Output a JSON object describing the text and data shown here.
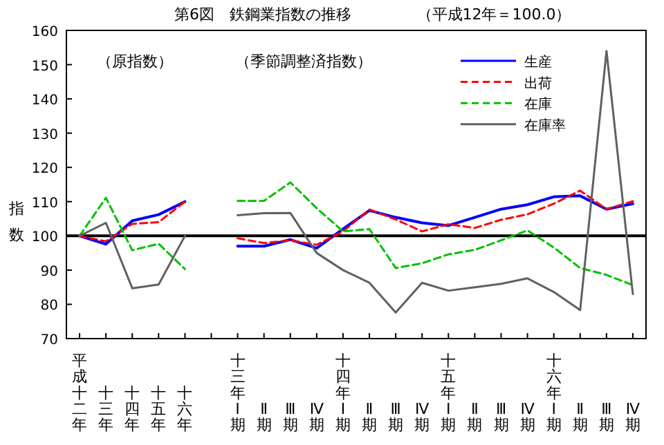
{
  "chart_data": {
    "type": "line",
    "title": "第6図　鉄鋼業指数の推移",
    "subtitle": "（平成12年＝100.0）",
    "ylabel": "指数",
    "annotations": [
      "（原指数）",
      "（季節調整済指数）"
    ],
    "categories": [
      "平成十二年",
      "十三年",
      "十四年",
      "十五年",
      "十六年",
      null,
      "十三年Ⅰ期",
      "Ⅱ期",
      "Ⅲ期",
      "Ⅳ期",
      "十四年Ⅰ期",
      "Ⅱ期",
      "Ⅲ期",
      "Ⅳ期",
      "十五年Ⅰ期",
      "Ⅱ期",
      "Ⅲ期",
      "Ⅳ期",
      "十六年Ⅰ期",
      "Ⅱ期",
      "Ⅲ期",
      "Ⅳ期"
    ],
    "series": [
      {
        "name": "生産",
        "color": "#0000ff",
        "line_style": "solid",
        "values": [
          100,
          97.6,
          104.4,
          106.2,
          110,
          null,
          97,
          97,
          98.9,
          96.4,
          102,
          107.4,
          105.4,
          103.8,
          103,
          105.4,
          107.8,
          109.1,
          111.4,
          111.7,
          107.8,
          109.4
        ]
      },
      {
        "name": "出荷",
        "color": "#ff0000",
        "line_style": "dashed",
        "values": [
          100,
          98.4,
          103.5,
          104,
          110,
          null,
          99.3,
          97.9,
          98.7,
          97.4,
          101.3,
          107.7,
          104.8,
          101.3,
          103.4,
          102.3,
          104.7,
          106.3,
          109.4,
          113.2,
          107.8,
          110.1
        ]
      },
      {
        "name": "在庫",
        "color": "#00c000",
        "line_style": "dashed",
        "values": [
          100,
          111.1,
          95.8,
          97.7,
          90.3,
          null,
          110.2,
          110.2,
          115.6,
          108.1,
          101.3,
          102,
          90.6,
          92,
          94.6,
          95.9,
          98.7,
          101.6,
          96.6,
          90.6,
          88.6,
          85.6
        ]
      },
      {
        "name": "在庫率",
        "color": "#606060",
        "line_style": "solid",
        "values": [
          100,
          103.8,
          84.7,
          85.8,
          100,
          null,
          106,
          106.6,
          106.7,
          95,
          90,
          86.3,
          77.6,
          86.3,
          84,
          85,
          86,
          87.6,
          83.6,
          78.3,
          154,
          83
        ]
      }
    ],
    "ylim": [
      70,
      160
    ],
    "yticks": [
      70,
      80,
      90,
      100,
      110,
      120,
      130,
      140,
      150,
      160
    ],
    "ref_lines": [
      {
        "axis": "y",
        "value": 100,
        "color": "#000000"
      }
    ],
    "legend": "top right",
    "grid": false
  }
}
